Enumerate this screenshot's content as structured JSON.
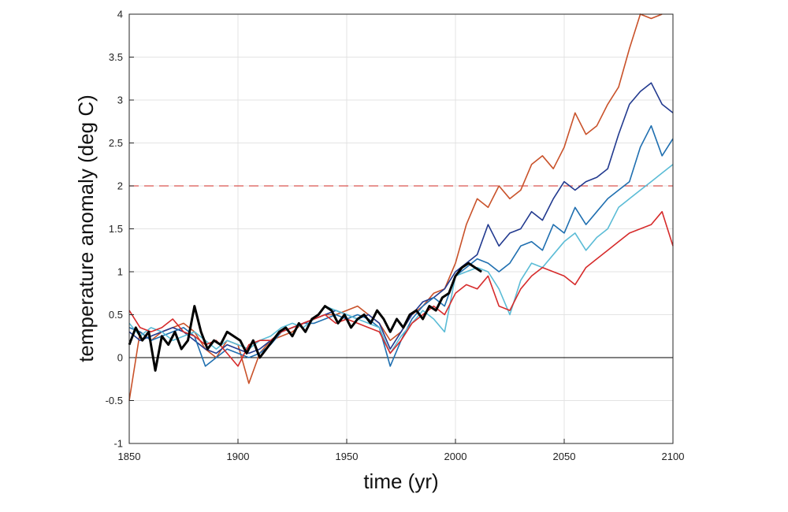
{
  "chart_data": {
    "type": "line",
    "xlabel": "time (yr)",
    "ylabel": "temperature anomaly (deg C)",
    "xlim": [
      1850,
      2100
    ],
    "ylim": [
      -1,
      4
    ],
    "x_ticks": [
      1850,
      1900,
      1950,
      2000,
      2050,
      2100
    ],
    "x_tick_labels": [
      "1850",
      "1900",
      "1950",
      "2000",
      "2050",
      "2100"
    ],
    "y_ticks": [
      -1,
      -0.5,
      0,
      0.5,
      1,
      1.5,
      2,
      2.5,
      3,
      3.5,
      4
    ],
    "y_tick_labels": [
      "-1",
      "-0.5",
      "0",
      "0.5",
      "1",
      "1.5",
      "2",
      "2.5",
      "3",
      "3.5",
      "4"
    ],
    "grid": true,
    "legend": "none",
    "reference_lines": [
      {
        "y": 0,
        "style": "solid",
        "color": "#000000"
      },
      {
        "y": 2,
        "style": "dashed",
        "color": "#d9534f"
      }
    ],
    "series": [
      {
        "color": "#c9522a",
        "x": [
          1850,
          1855,
          1860,
          1865,
          1870,
          1875,
          1880,
          1885,
          1890,
          1895,
          1900,
          1905,
          1910,
          1915,
          1920,
          1925,
          1930,
          1935,
          1940,
          1945,
          1950,
          1955,
          1960,
          1965,
          1970,
          1975,
          1980,
          1985,
          1990,
          1995,
          2000,
          2005,
          2010,
          2015,
          2020,
          2025,
          2030,
          2035,
          2040,
          2045,
          2050,
          2055,
          2060,
          2065,
          2070,
          2075,
          2080,
          2085,
          2090,
          2095
        ],
        "y": [
          -0.5,
          0.3,
          0.2,
          0.3,
          0.35,
          0.4,
          0.3,
          0.1,
          0.0,
          0.2,
          0.15,
          -0.3,
          0.05,
          0.2,
          0.25,
          0.3,
          0.4,
          0.45,
          0.5,
          0.5,
          0.55,
          0.6,
          0.5,
          0.4,
          0.2,
          0.3,
          0.5,
          0.6,
          0.75,
          0.8,
          1.1,
          1.55,
          1.85,
          1.75,
          2.0,
          1.85,
          1.95,
          2.25,
          2.35,
          2.2,
          2.45,
          2.85,
          2.6,
          2.7,
          2.95,
          3.15,
          3.6,
          4.0,
          3.95,
          4.0
        ]
      },
      {
        "color": "#223a8f",
        "x": [
          1850,
          1855,
          1860,
          1865,
          1870,
          1875,
          1880,
          1885,
          1890,
          1895,
          1900,
          1905,
          1910,
          1915,
          1920,
          1925,
          1930,
          1935,
          1940,
          1945,
          1950,
          1955,
          1960,
          1965,
          1970,
          1975,
          1980,
          1985,
          1990,
          1995,
          2000,
          2005,
          2010,
          2015,
          2020,
          2025,
          2030,
          2035,
          2040,
          2045,
          2050,
          2055,
          2060,
          2065,
          2070,
          2075,
          2080,
          2085,
          2090,
          2095,
          2100
        ],
        "y": [
          0.3,
          0.2,
          0.25,
          0.3,
          0.35,
          0.3,
          0.2,
          0.1,
          0.05,
          0.15,
          0.1,
          0.05,
          0.1,
          0.2,
          0.3,
          0.35,
          0.4,
          0.45,
          0.5,
          0.55,
          0.5,
          0.45,
          0.5,
          0.4,
          0.1,
          0.3,
          0.5,
          0.65,
          0.7,
          0.8,
          1.0,
          1.1,
          1.2,
          1.55,
          1.3,
          1.45,
          1.5,
          1.7,
          1.6,
          1.85,
          2.05,
          1.95,
          2.05,
          2.1,
          2.2,
          2.6,
          2.95,
          3.1,
          3.2,
          2.95,
          2.85
        ]
      },
      {
        "color": "#1f6fb0",
        "x": [
          1850,
          1855,
          1860,
          1865,
          1870,
          1875,
          1880,
          1885,
          1890,
          1895,
          1900,
          1905,
          1910,
          1915,
          1920,
          1925,
          1930,
          1935,
          1940,
          1945,
          1950,
          1955,
          1960,
          1965,
          1970,
          1975,
          1980,
          1985,
          1990,
          1995,
          2000,
          2005,
          2010,
          2015,
          2020,
          2025,
          2030,
          2035,
          2040,
          2045,
          2050,
          2055,
          2060,
          2065,
          2070,
          2075,
          2080,
          2085,
          2090,
          2095,
          2100
        ],
        "y": [
          0.35,
          0.3,
          0.2,
          0.25,
          0.3,
          0.35,
          0.25,
          -0.1,
          0.0,
          0.1,
          0.05,
          0.0,
          0.05,
          0.15,
          0.3,
          0.35,
          0.4,
          0.4,
          0.45,
          0.5,
          0.45,
          0.5,
          0.45,
          0.35,
          -0.1,
          0.2,
          0.45,
          0.6,
          0.7,
          0.6,
          0.95,
          1.05,
          1.15,
          1.1,
          1.0,
          1.1,
          1.3,
          1.35,
          1.25,
          1.55,
          1.45,
          1.75,
          1.55,
          1.7,
          1.85,
          1.95,
          2.05,
          2.45,
          2.7,
          2.35,
          2.55
        ]
      },
      {
        "color": "#5bbcd6",
        "x": [
          1850,
          1855,
          1860,
          1865,
          1870,
          1875,
          1880,
          1885,
          1890,
          1895,
          1900,
          1905,
          1910,
          1915,
          1920,
          1925,
          1930,
          1935,
          1940,
          1945,
          1950,
          1955,
          1960,
          1965,
          1970,
          1975,
          1980,
          1985,
          1990,
          1995,
          2000,
          2005,
          2010,
          2015,
          2020,
          2025,
          2030,
          2035,
          2040,
          2045,
          2050,
          2055,
          2060,
          2065,
          2070,
          2075,
          2080,
          2085,
          2090,
          2095,
          2100
        ],
        "y": [
          0.4,
          0.25,
          0.35,
          0.3,
          0.2,
          0.25,
          0.3,
          0.2,
          0.1,
          0.2,
          0.15,
          0.1,
          0.2,
          0.25,
          0.35,
          0.4,
          0.35,
          0.45,
          0.6,
          0.55,
          0.5,
          0.45,
          0.4,
          0.35,
          0.05,
          0.25,
          0.4,
          0.55,
          0.45,
          0.3,
          0.95,
          1.0,
          1.05,
          1.0,
          0.8,
          0.5,
          0.9,
          1.1,
          1.05,
          1.2,
          1.35,
          1.45,
          1.25,
          1.4,
          1.5,
          1.75,
          1.85,
          1.95,
          2.05,
          2.15,
          2.25
        ]
      },
      {
        "color": "#d62b2b",
        "x": [
          1850,
          1855,
          1860,
          1865,
          1870,
          1875,
          1880,
          1885,
          1890,
          1895,
          1900,
          1905,
          1910,
          1915,
          1920,
          1925,
          1930,
          1935,
          1940,
          1945,
          1950,
          1955,
          1960,
          1965,
          1970,
          1975,
          1980,
          1985,
          1990,
          1995,
          2000,
          2005,
          2010,
          2015,
          2020,
          2025,
          2030,
          2035,
          2040,
          2045,
          2050,
          2055,
          2060,
          2065,
          2070,
          2075,
          2080,
          2085,
          2090,
          2095,
          2100
        ],
        "y": [
          0.55,
          0.35,
          0.3,
          0.35,
          0.45,
          0.3,
          0.25,
          0.15,
          0.2,
          0.05,
          -0.1,
          0.15,
          0.2,
          0.2,
          0.3,
          0.35,
          0.4,
          0.45,
          0.5,
          0.4,
          0.45,
          0.4,
          0.35,
          0.3,
          0.05,
          0.2,
          0.4,
          0.5,
          0.6,
          0.5,
          0.75,
          0.85,
          0.8,
          0.95,
          0.6,
          0.55,
          0.8,
          0.95,
          1.05,
          1.0,
          0.95,
          0.85,
          1.05,
          1.15,
          1.25,
          1.35,
          1.45,
          1.5,
          1.55,
          1.7,
          1.3
        ]
      },
      {
        "color": "#000000",
        "observed": true,
        "x": [
          1850,
          1853,
          1856,
          1859,
          1862,
          1865,
          1868,
          1871,
          1874,
          1877,
          1880,
          1883,
          1886,
          1889,
          1892,
          1895,
          1898,
          1901,
          1904,
          1907,
          1910,
          1913,
          1916,
          1919,
          1922,
          1925,
          1928,
          1931,
          1934,
          1937,
          1940,
          1943,
          1946,
          1949,
          1952,
          1955,
          1958,
          1961,
          1964,
          1967,
          1970,
          1973,
          1976,
          1979,
          1982,
          1985,
          1988,
          1991,
          1994,
          1997,
          2000,
          2003,
          2006,
          2009,
          2012
        ],
        "y": [
          0.15,
          0.35,
          0.2,
          0.3,
          -0.15,
          0.25,
          0.15,
          0.3,
          0.1,
          0.2,
          0.6,
          0.3,
          0.1,
          0.2,
          0.15,
          0.3,
          0.25,
          0.2,
          0.05,
          0.2,
          0.0,
          0.1,
          0.2,
          0.3,
          0.35,
          0.25,
          0.4,
          0.3,
          0.45,
          0.5,
          0.6,
          0.55,
          0.4,
          0.5,
          0.35,
          0.45,
          0.5,
          0.4,
          0.55,
          0.45,
          0.3,
          0.45,
          0.35,
          0.5,
          0.55,
          0.45,
          0.6,
          0.55,
          0.7,
          0.75,
          0.95,
          1.05,
          1.1,
          1.05,
          1.0
        ]
      }
    ]
  }
}
